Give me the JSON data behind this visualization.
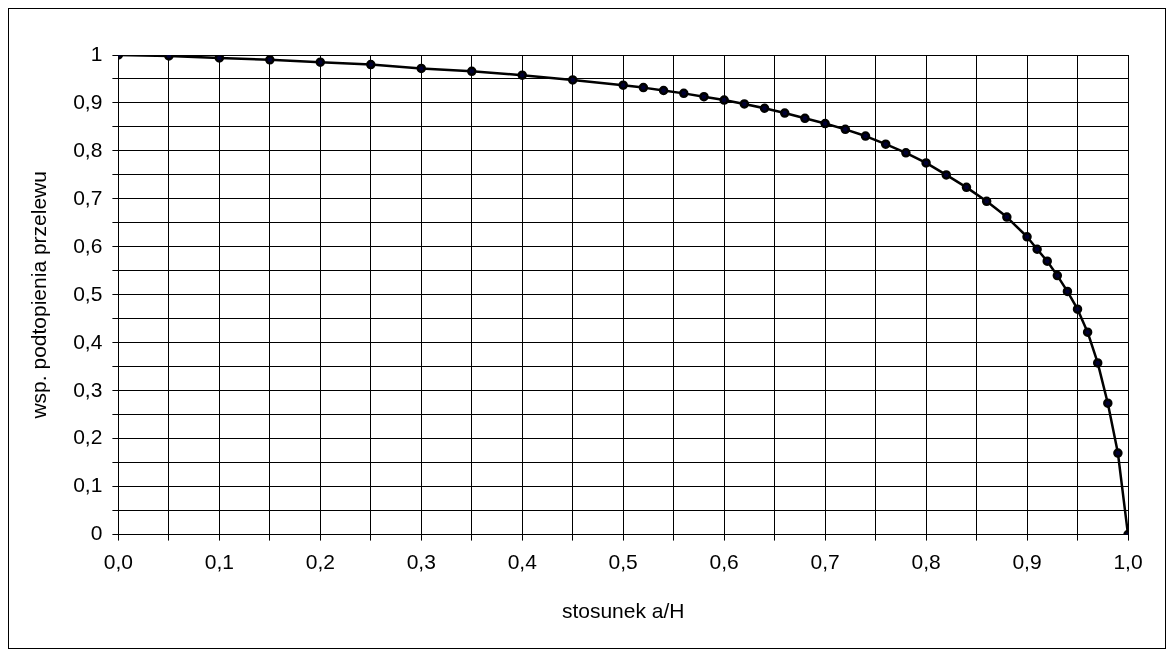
{
  "chart_data": {
    "type": "line",
    "xlabel": "stosunek a/H",
    "ylabel": "wsp. podtopienia przelewu",
    "x": [
      0,
      0.05,
      0.1,
      0.15,
      0.2,
      0.25,
      0.3,
      0.35,
      0.4,
      0.45,
      0.5,
      0.52,
      0.54,
      0.56,
      0.58,
      0.6,
      0.62,
      0.64,
      0.66,
      0.68,
      0.7,
      0.72,
      0.74,
      0.76,
      0.78,
      0.8,
      0.82,
      0.84,
      0.86,
      0.88,
      0.9,
      0.91,
      0.92,
      0.93,
      0.94,
      0.95,
      0.96,
      0.97,
      0.98,
      0.99,
      1.0
    ],
    "series": [
      {
        "color": "#000000",
        "values": [
          1,
          0.998,
          0.994,
          0.99,
          0.985,
          0.98,
          0.972,
          0.966,
          0.958,
          0.948,
          0.937,
          0.932,
          0.926,
          0.92,
          0.913,
          0.906,
          0.898,
          0.889,
          0.879,
          0.868,
          0.857,
          0.845,
          0.831,
          0.814,
          0.796,
          0.775,
          0.75,
          0.724,
          0.695,
          0.662,
          0.621,
          0.595,
          0.57,
          0.54,
          0.507,
          0.47,
          0.422,
          0.358,
          0.274,
          0.17,
          0
        ]
      }
    ],
    "xlim": [
      0,
      1
    ],
    "xticks": [
      {
        "value": 0,
        "label": "0,0"
      },
      {
        "value": 0.05,
        "label": null
      },
      {
        "value": 0.1,
        "label": "0,1"
      },
      {
        "value": 0.15,
        "label": null
      },
      {
        "value": 0.2,
        "label": "0,2"
      },
      {
        "value": 0.25,
        "label": null
      },
      {
        "value": 0.3,
        "label": "0,3"
      },
      {
        "value": 0.35,
        "label": null
      },
      {
        "value": 0.4,
        "label": "0,4"
      },
      {
        "value": 0.45,
        "label": null
      },
      {
        "value": 0.5,
        "label": "0,5"
      },
      {
        "value": 0.55,
        "label": null
      },
      {
        "value": 0.6,
        "label": "0,6"
      },
      {
        "value": 0.65,
        "label": null
      },
      {
        "value": 0.7,
        "label": "0,7"
      },
      {
        "value": 0.75,
        "label": null
      },
      {
        "value": 0.8,
        "label": "0,8"
      },
      {
        "value": 0.85,
        "label": null
      },
      {
        "value": 0.9,
        "label": "0,9"
      },
      {
        "value": 0.95,
        "label": null
      },
      {
        "value": 1,
        "label": "1,0"
      }
    ],
    "ylim": [
      0,
      1
    ],
    "yticks": [
      0,
      {
        "value": 0.05,
        "label": null
      },
      {
        "value": 0.1,
        "label": "0,1"
      },
      {
        "value": 0.15,
        "label": null
      },
      {
        "value": 0.2,
        "label": "0,2"
      },
      {
        "value": 0.25,
        "label": null
      },
      {
        "value": 0.3,
        "label": "0,3"
      },
      {
        "value": 0.35,
        "label": null
      },
      {
        "value": 0.4,
        "label": "0,4"
      },
      {
        "value": 0.45,
        "label": null
      },
      {
        "value": 0.5,
        "label": "0,5"
      },
      {
        "value": 0.55,
        "label": null
      },
      {
        "value": 0.6,
        "label": "0,6"
      },
      {
        "value": 0.65,
        "label": null
      },
      {
        "value": 0.7,
        "label": "0,7"
      },
      {
        "value": 0.75,
        "label": null
      },
      {
        "value": 0.8,
        "label": "0,8"
      },
      {
        "value": 0.85,
        "label": null
      },
      {
        "value": 0.9,
        "label": "0,9"
      },
      {
        "value": 0.95,
        "label": null
      },
      1
    ],
    "grid": true,
    "legend": false,
    "marker": "circle",
    "line_style": "solid"
  }
}
